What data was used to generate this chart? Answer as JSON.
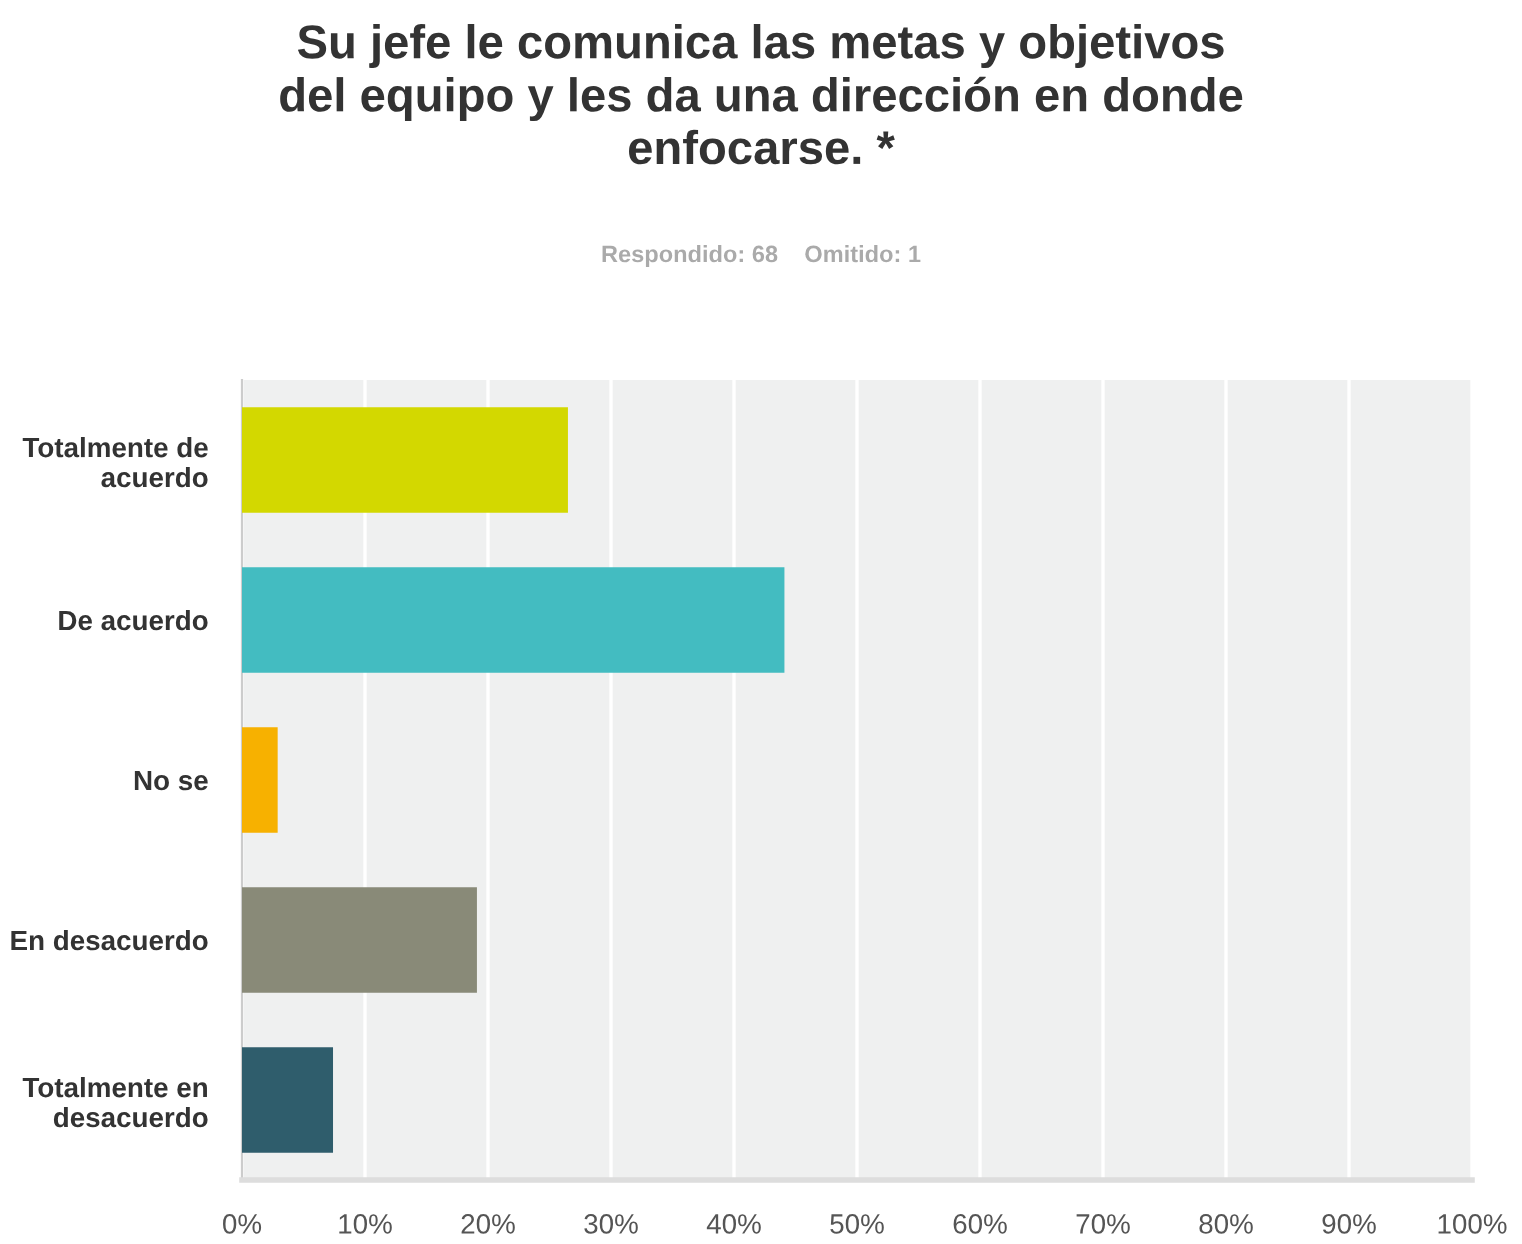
{
  "chart_data": {
    "type": "bar",
    "orientation": "horizontal",
    "title": "Su jefe le comunica las metas y objetivos\ndel equipo y les da una dirección en donde\nenfocarse. *",
    "subtitle": "Respondido: 68    Omitido: 1",
    "categories": [
      "Totalmente de\nacuerdo",
      "De acuerdo",
      "No se",
      "En desacuerdo",
      "Totalmente en\ndesacuerdo"
    ],
    "values": [
      26.5,
      44.1,
      2.9,
      19.1,
      7.4
    ],
    "colors": [
      "#d3d800",
      "#43bcc1",
      "#f7b100",
      "#898a78",
      "#2f5d6c"
    ],
    "xlim": [
      0,
      100
    ],
    "xticks": [
      {
        "value": 0,
        "label": "0%"
      },
      {
        "value": 10,
        "label": "10%"
      },
      {
        "value": 20,
        "label": "20%"
      },
      {
        "value": 30,
        "label": "30%"
      },
      {
        "value": 40,
        "label": "40%"
      },
      {
        "value": 50,
        "label": "50%"
      },
      {
        "value": 60,
        "label": "60%"
      },
      {
        "value": 70,
        "label": "70%"
      },
      {
        "value": 80,
        "label": "80%"
      },
      {
        "value": 90,
        "label": "90%"
      },
      {
        "value": 100,
        "label": "100%"
      }
    ],
    "grid": "x",
    "legend": false
  }
}
